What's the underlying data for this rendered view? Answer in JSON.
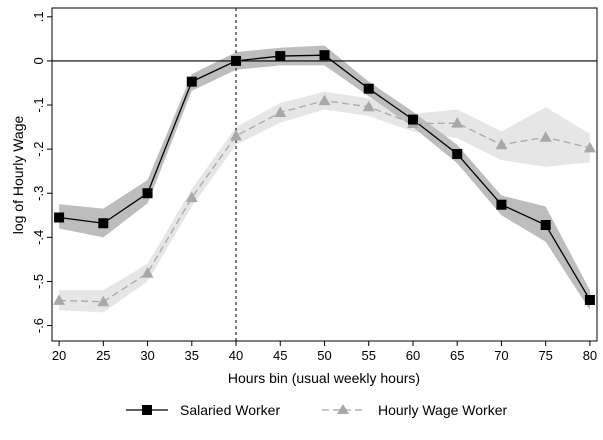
{
  "chart_data": {
    "type": "line",
    "xlabel": "Hours bin (usual weekly hours)",
    "ylabel": "log of Hourly Wage",
    "x": [
      20,
      25,
      30,
      35,
      40,
      45,
      50,
      55,
      60,
      65,
      70,
      75,
      80
    ],
    "xticks": [
      "20",
      "25",
      "30",
      "35",
      "40",
      "45",
      "50",
      "55",
      "60",
      "65",
      "70",
      "75",
      "80"
    ],
    "yticks": [
      {
        "value": 0.1,
        "label": ".1"
      },
      {
        "value": 0,
        "label": "0"
      },
      {
        "value": -0.1,
        "label": "-.1"
      },
      {
        "value": -0.2,
        "label": "-.2"
      },
      {
        "value": -0.3,
        "label": "-.3"
      },
      {
        "value": -0.4,
        "label": "-.4"
      },
      {
        "value": -0.5,
        "label": "-.5"
      },
      {
        "value": -0.6,
        "label": "-.6"
      }
    ],
    "xlim": [
      19.2,
      80.8
    ],
    "ylim": [
      -0.635,
      0.12
    ],
    "reference_lines": {
      "horizontal_y": 0,
      "vertical_x": 40
    },
    "grid": false,
    "legend_position": "bottom",
    "series": [
      {
        "name": "Salaried Worker",
        "marker": "square",
        "line_style": "solid",
        "color": "#000000",
        "band_color": "#bdbdbd",
        "values": [
          -0.355,
          -0.368,
          -0.3,
          -0.047,
          0.0,
          0.011,
          0.013,
          -0.063,
          -0.133,
          -0.211,
          -0.326,
          -0.372,
          -0.542
        ],
        "ci_lower": [
          -0.38,
          -0.4,
          -0.323,
          -0.068,
          -0.02,
          -0.01,
          -0.01,
          -0.08,
          -0.15,
          -0.232,
          -0.35,
          -0.41,
          -0.565
        ],
        "ci_upper": [
          -0.325,
          -0.335,
          -0.27,
          -0.03,
          0.02,
          0.03,
          0.035,
          -0.047,
          -0.115,
          -0.19,
          -0.305,
          -0.33,
          -0.52
        ]
      },
      {
        "name": "Hourly Wage Worker",
        "marker": "triangle",
        "line_style": "dashed",
        "color": "#a8a8a8",
        "band_color": "#e6e6e6",
        "values": [
          -0.543,
          -0.546,
          -0.481,
          -0.31,
          -0.17,
          -0.117,
          -0.09,
          -0.104,
          -0.142,
          -0.141,
          -0.19,
          -0.173,
          -0.197
        ],
        "ci_lower": [
          -0.565,
          -0.57,
          -0.5,
          -0.33,
          -0.19,
          -0.14,
          -0.11,
          -0.125,
          -0.16,
          -0.175,
          -0.225,
          -0.24,
          -0.23
        ],
        "ci_upper": [
          -0.52,
          -0.52,
          -0.46,
          -0.29,
          -0.15,
          -0.095,
          -0.07,
          -0.085,
          -0.12,
          -0.11,
          -0.16,
          -0.105,
          -0.165
        ]
      }
    ]
  }
}
